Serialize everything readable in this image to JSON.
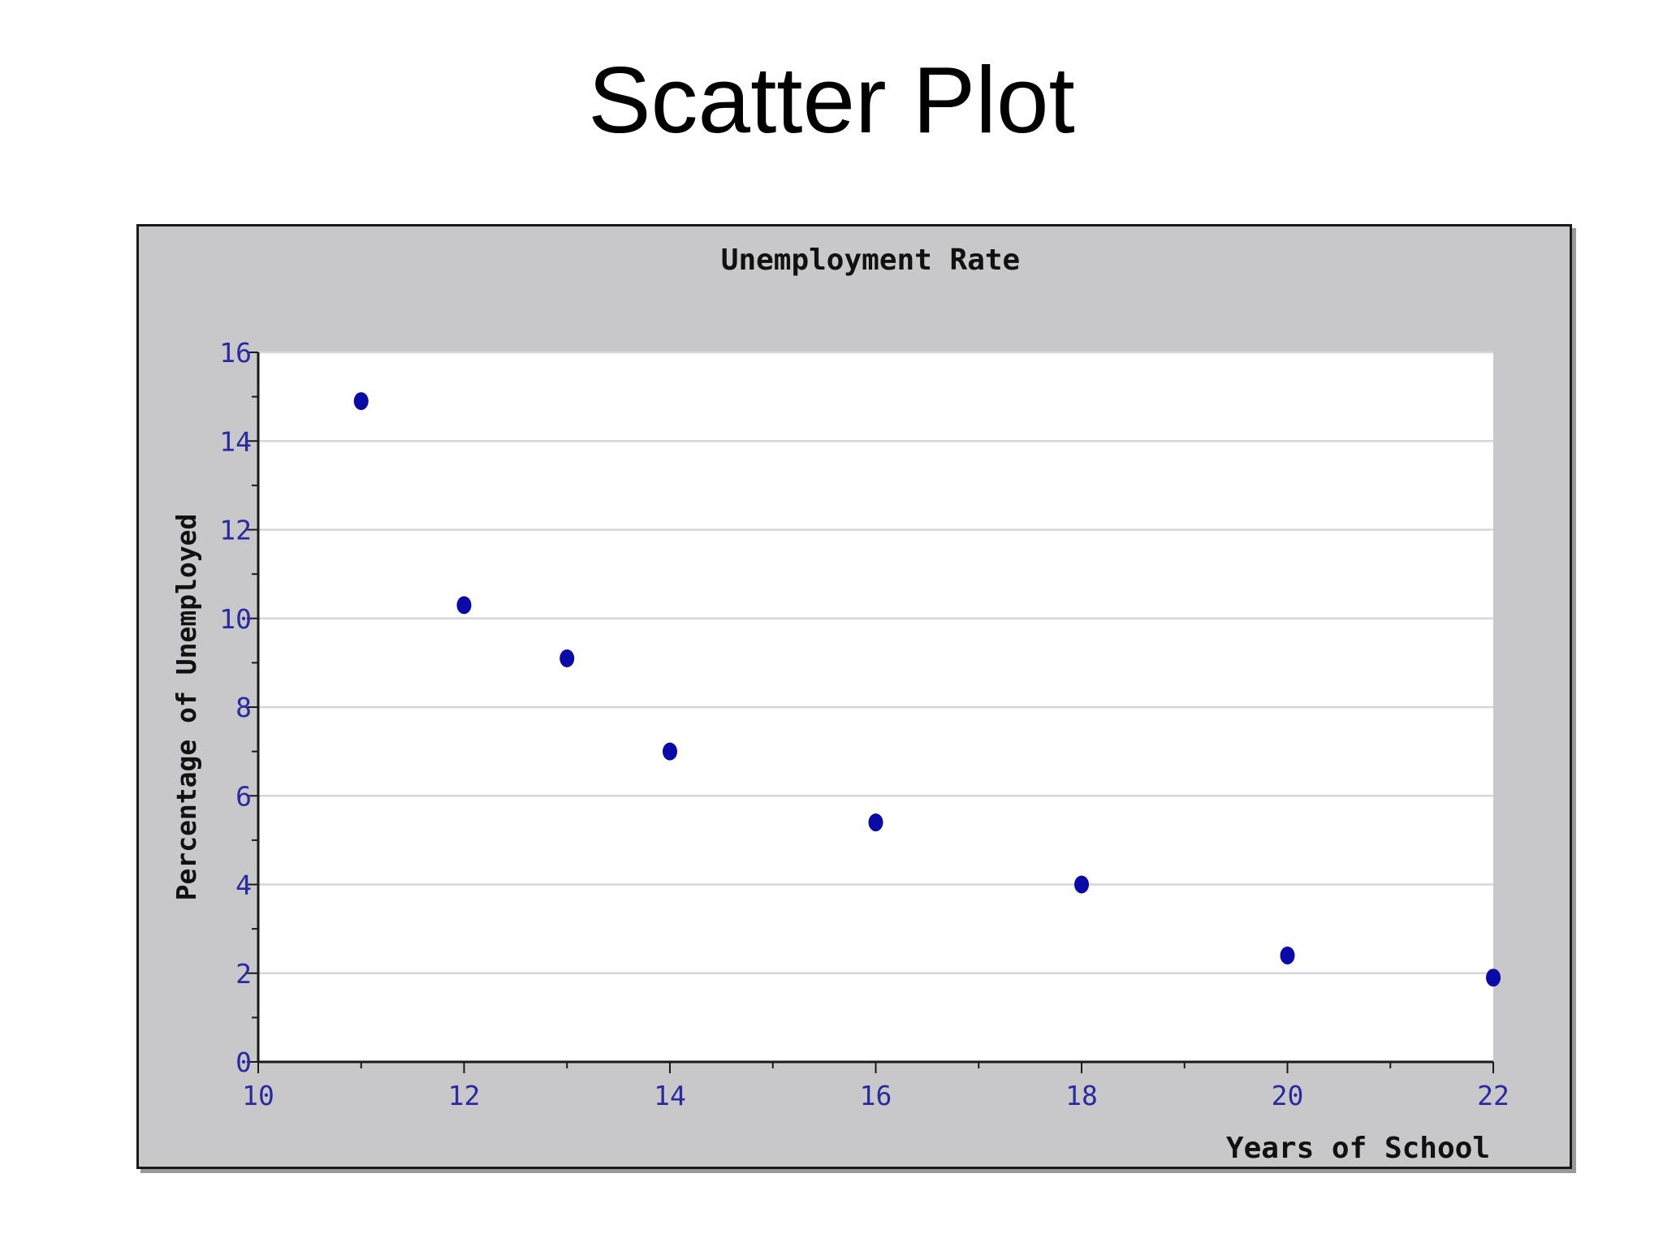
{
  "page": {
    "title": "Scatter Plot"
  },
  "colors": {
    "panel_background": "#c8c8ca",
    "plot_background": "#ffffff",
    "gridline": "#d6d6dc",
    "axis": "#1a1a1a",
    "tick_label": "#2a2aa0",
    "point": "#0a0aa8",
    "text": "#111111"
  },
  "chart_data": {
    "type": "scatter",
    "title": "Unemployment Rate",
    "xlabel": "Years of School",
    "ylabel": "Percentage of Unemployed",
    "xlim": [
      10,
      22
    ],
    "ylim": [
      0,
      16
    ],
    "x_ticks": [
      10,
      12,
      14,
      16,
      18,
      20,
      22
    ],
    "y_ticks": [
      0,
      2,
      4,
      6,
      8,
      10,
      12,
      14,
      16
    ],
    "x_minor_step": 1,
    "y_minor_step": 1,
    "grid": "horizontal",
    "legend": "none",
    "x": [
      11,
      12,
      13,
      14,
      16,
      18,
      20,
      22
    ],
    "y": [
      14.9,
      10.3,
      9.1,
      7.0,
      5.4,
      4.0,
      2.4,
      1.9
    ]
  }
}
